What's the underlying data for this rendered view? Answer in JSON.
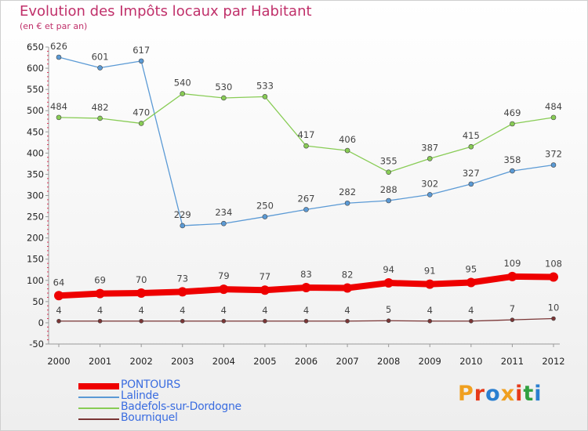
{
  "title": "Evolution des Impôts locaux par Habitant",
  "subtitle": "(en € et par an)",
  "logo": {
    "text": "Proxiti",
    "letter_colors": [
      "#f0a020",
      "#e63a1a",
      "#2a7fd0",
      "#f0a020",
      "#e63a1a",
      "#30a040",
      "#2a7fd0"
    ]
  },
  "chart_data": {
    "type": "line",
    "title": "Evolution des Impôts locaux par Habitant",
    "subtitle": "(en € et par an)",
    "xlabel": "",
    "ylabel": "",
    "x": [
      "2000",
      "2001",
      "2002",
      "2003",
      "2004",
      "2005",
      "2006",
      "2007",
      "2008",
      "2009",
      "2010",
      "2011",
      "2012"
    ],
    "ylim": [
      -50,
      650
    ],
    "yticks": [
      -50,
      0,
      50,
      100,
      150,
      200,
      250,
      300,
      350,
      400,
      450,
      500,
      550,
      600,
      650
    ],
    "grid": false,
    "legend_position": "bottom-left",
    "series": [
      {
        "name": "PONTOURS",
        "color": "#ee0000",
        "values": [
          64,
          69,
          70,
          73,
          79,
          77,
          83,
          82,
          94,
          91,
          95,
          109,
          108
        ]
      },
      {
        "name": "Lalinde",
        "color": "#5b9ad5",
        "values": [
          626,
          601,
          617,
          229,
          234,
          250,
          267,
          282,
          288,
          302,
          327,
          358,
          372
        ]
      },
      {
        "name": "Badefols-sur-Dordogne",
        "color": "#88cc55",
        "values": [
          484,
          482,
          470,
          540,
          530,
          533,
          417,
          406,
          355,
          387,
          415,
          469,
          484
        ]
      },
      {
        "name": "Bourniquel",
        "color": "#7a3535",
        "values": [
          4,
          4,
          4,
          4,
          4,
          4,
          4,
          4,
          5,
          4,
          4,
          7,
          10
        ]
      }
    ]
  }
}
